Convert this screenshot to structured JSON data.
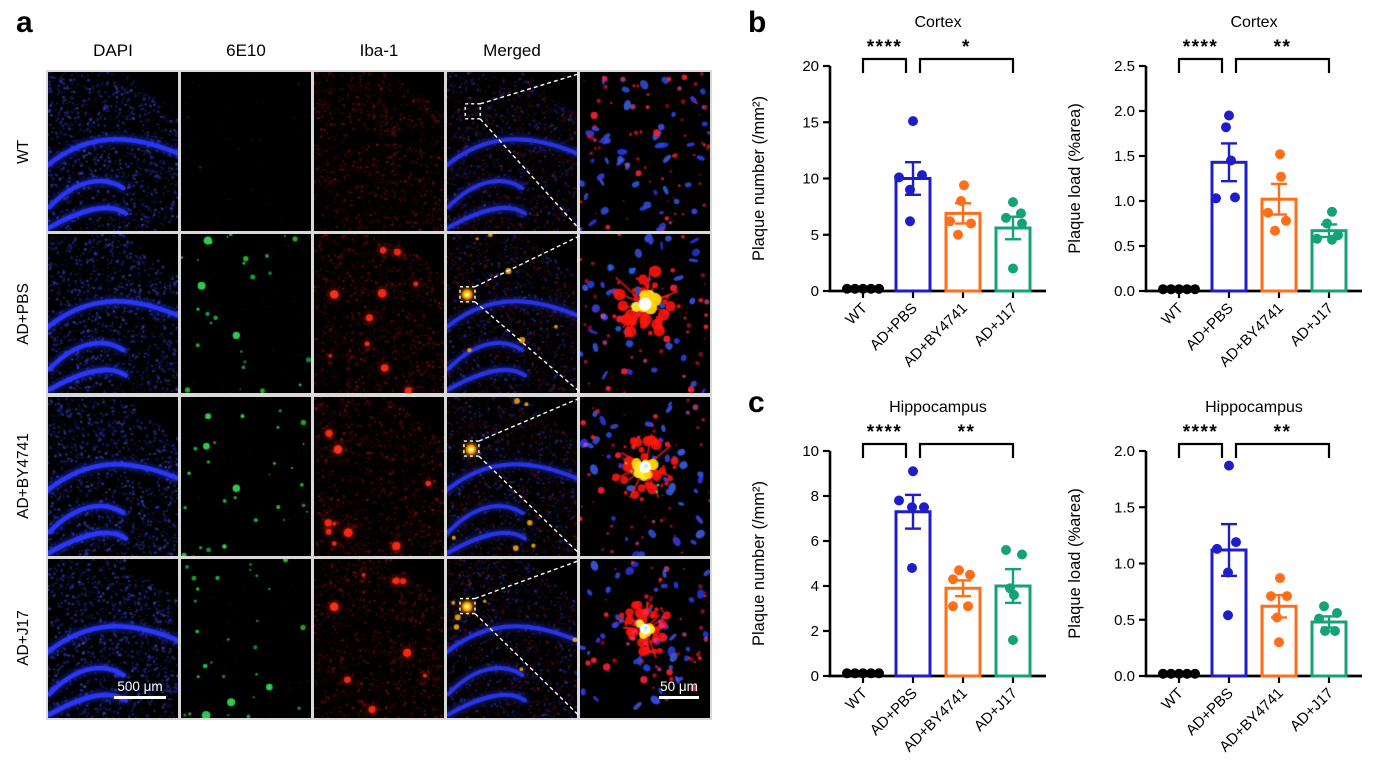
{
  "panel_a": {
    "letter": "a",
    "column_headers": [
      "DAPI",
      "6E10",
      "Iba-1",
      "Merged"
    ],
    "row_labels": [
      "WT",
      "AD+PBS",
      "AD+BY4741",
      "AD+J17"
    ],
    "row_types": [
      "wt",
      "pbs",
      "by4741",
      "j17"
    ],
    "scale_bar_500": "500 μm",
    "scale_bar_50": "50 μm"
  },
  "panel_b": {
    "letter": "b"
  },
  "panel_c": {
    "letter": "c"
  },
  "colors": {
    "wt_black": "#000000",
    "ad_pbs_blue": "#1d1dc9",
    "ad_by4741_orange": "#ff6e19",
    "ad_j17_green": "#13a377",
    "dapi_blue": "#2a39ff",
    "marker_6e10_green": "#2ec94e",
    "iba1_red": "#e01616",
    "plaque_yellow": "#ffd400"
  },
  "chart_data": [
    {
      "id": "cortex_plaque_number",
      "type": "bar",
      "title": "Cortex",
      "ylabel": "Plaque number (/mm²)",
      "ylim": [
        0,
        20
      ],
      "yticks": [
        0,
        5,
        10,
        15,
        20
      ],
      "ytick_labels": [
        "0",
        "5",
        "10",
        "15",
        "20"
      ],
      "categories": [
        "WT",
        "AD+PBS",
        "AD+BY4741",
        "AD+J17"
      ],
      "bar_colors": [
        "#000000",
        "#1d1dc9",
        "#ff6e19",
        "#13a377"
      ],
      "means": [
        0.15,
        10.0,
        6.9,
        5.6
      ],
      "sem": [
        0,
        1.45,
        0.9,
        1.0
      ],
      "points": [
        [
          [
            -16,
            0.2
          ],
          [
            -8,
            0.2
          ],
          [
            0,
            0.2
          ],
          [
            8,
            0.2
          ],
          [
            16,
            0.2
          ]
        ],
        [
          [
            0,
            15.1
          ],
          [
            -14,
            10.1
          ],
          [
            9,
            10.3
          ],
          [
            -3,
            9.0
          ],
          [
            -3,
            6.2
          ]
        ],
        [
          [
            1,
            9.4
          ],
          [
            -2,
            8.0
          ],
          [
            -13,
            6.2
          ],
          [
            8,
            6.0
          ],
          [
            -5,
            5.0
          ]
        ],
        [
          [
            0,
            7.9
          ],
          [
            8,
            6.9
          ],
          [
            -7,
            6.5
          ],
          [
            9,
            6.0
          ],
          [
            0,
            2.0
          ]
        ]
      ],
      "significance": [
        {
          "from": 0,
          "to": 1,
          "label": "****"
        },
        {
          "from": 1,
          "to": 3,
          "label": "*"
        }
      ],
      "legend": "none",
      "grid": false
    },
    {
      "id": "cortex_plaque_load",
      "type": "bar",
      "title": "Cortex",
      "ylabel": "Plaque load (%area)",
      "ylim": [
        0,
        2.5
      ],
      "yticks": [
        0,
        0.5,
        1.0,
        1.5,
        2.0,
        2.5
      ],
      "ytick_labels": [
        "0.0",
        "0.5",
        "1.0",
        "1.5",
        "2.0",
        "2.5"
      ],
      "categories": [
        "WT",
        "AD+PBS",
        "AD+BY4741",
        "AD+J17"
      ],
      "bar_colors": [
        "#000000",
        "#1d1dc9",
        "#ff6e19",
        "#13a377"
      ],
      "means": [
        0.02,
        1.43,
        1.02,
        0.67
      ],
      "sem": [
        0,
        0.21,
        0.17,
        0.07
      ],
      "points": [
        [
          [
            -16,
            0.02
          ],
          [
            -8,
            0.02
          ],
          [
            0,
            0.02
          ],
          [
            8,
            0.02
          ],
          [
            16,
            0.02
          ]
        ],
        [
          [
            0,
            1.95
          ],
          [
            -3,
            1.82
          ],
          [
            -13,
            1.03
          ],
          [
            6,
            1.04
          ],
          [
            2,
            1.45
          ]
        ],
        [
          [
            1,
            1.52
          ],
          [
            2,
            1.27
          ],
          [
            -11,
            0.87
          ],
          [
            7,
            0.78
          ],
          [
            -4,
            0.67
          ]
        ],
        [
          [
            3,
            0.88
          ],
          [
            -2,
            0.75
          ],
          [
            -12,
            0.58
          ],
          [
            9,
            0.62
          ],
          [
            3,
            0.57
          ]
        ]
      ],
      "significance": [
        {
          "from": 0,
          "to": 1,
          "label": "****"
        },
        {
          "from": 1,
          "to": 3,
          "label": "**"
        }
      ],
      "legend": "none",
      "grid": false
    },
    {
      "id": "hippocampus_plaque_number",
      "type": "bar",
      "title": "Hippocampus",
      "ylabel": "Plaque number (/mm²)",
      "ylim": [
        0,
        10
      ],
      "yticks": [
        0,
        2,
        4,
        6,
        8,
        10
      ],
      "ytick_labels": [
        "0",
        "2",
        "4",
        "6",
        "8",
        "10"
      ],
      "categories": [
        "WT",
        "AD+PBS",
        "AD+BY4741",
        "AD+J17"
      ],
      "bar_colors": [
        "#000000",
        "#1d1dc9",
        "#ff6e19",
        "#13a377"
      ],
      "means": [
        0.1,
        7.3,
        3.9,
        4.0
      ],
      "sem": [
        0,
        0.75,
        0.35,
        0.75
      ],
      "points": [
        [
          [
            -16,
            0.12
          ],
          [
            -8,
            0.12
          ],
          [
            0,
            0.12
          ],
          [
            8,
            0.12
          ],
          [
            16,
            0.12
          ]
        ],
        [
          [
            0,
            9.1
          ],
          [
            -14,
            7.8
          ],
          [
            -1,
            7.5
          ],
          [
            11,
            7.5
          ],
          [
            -1,
            4.8
          ]
        ],
        [
          [
            -4,
            4.7
          ],
          [
            7,
            4.5
          ],
          [
            -10,
            4.3
          ],
          [
            -10,
            3.1
          ],
          [
            5,
            3.1
          ]
        ],
        [
          [
            -7,
            5.6
          ],
          [
            9,
            5.4
          ],
          [
            -3,
            3.9
          ],
          [
            1,
            3.6
          ],
          [
            0,
            1.6
          ]
        ]
      ],
      "significance": [
        {
          "from": 0,
          "to": 1,
          "label": "****"
        },
        {
          "from": 1,
          "to": 3,
          "label": "**"
        }
      ],
      "legend": "none",
      "grid": false
    },
    {
      "id": "hippocampus_plaque_load",
      "type": "bar",
      "title": "Hippocampus",
      "ylabel": "Plaque load (%area)",
      "ylim": [
        0,
        2.0
      ],
      "yticks": [
        0,
        0.5,
        1.0,
        1.5,
        2.0
      ],
      "ytick_labels": [
        "0.0",
        "0.5",
        "1.0",
        "1.5",
        "2.0"
      ],
      "categories": [
        "WT",
        "AD+PBS",
        "AD+BY4741",
        "AD+J17"
      ],
      "bar_colors": [
        "#000000",
        "#1d1dc9",
        "#ff6e19",
        "#13a377"
      ],
      "means": [
        0.02,
        1.12,
        0.62,
        0.48
      ],
      "sem": [
        0,
        0.23,
        0.1,
        0.05
      ],
      "points": [
        [
          [
            -16,
            0.02
          ],
          [
            -8,
            0.02
          ],
          [
            0,
            0.02
          ],
          [
            8,
            0.02
          ],
          [
            16,
            0.02
          ]
        ],
        [
          [
            0,
            1.87
          ],
          [
            7,
            1.19
          ],
          [
            -12,
            1.13
          ],
          [
            -1,
            0.92
          ],
          [
            -1,
            0.54
          ]
        ],
        [
          [
            1,
            0.87
          ],
          [
            -8,
            0.71
          ],
          [
            8,
            0.71
          ],
          [
            -2,
            0.52
          ],
          [
            0,
            0.3
          ]
        ],
        [
          [
            -5,
            0.62
          ],
          [
            8,
            0.56
          ],
          [
            -10,
            0.51
          ],
          [
            -4,
            0.4
          ],
          [
            6,
            0.4
          ]
        ]
      ],
      "significance": [
        {
          "from": 0,
          "to": 1,
          "label": "****"
        },
        {
          "from": 1,
          "to": 3,
          "label": "**"
        }
      ],
      "legend": "none",
      "grid": false
    }
  ]
}
